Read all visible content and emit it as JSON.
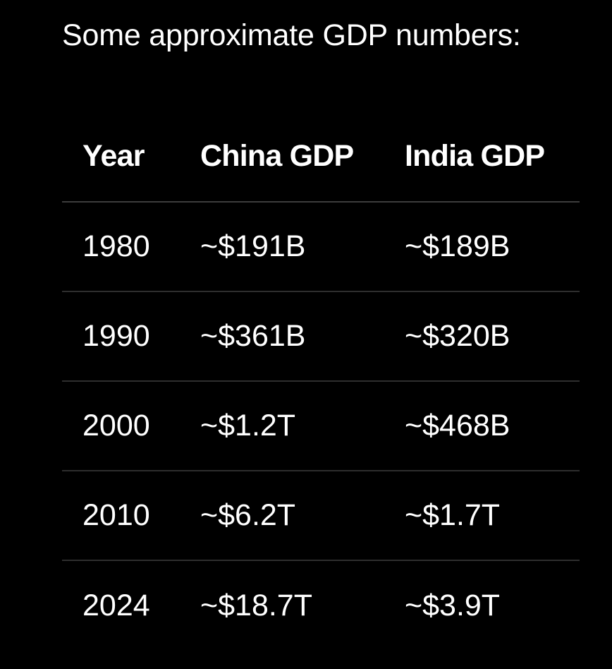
{
  "intro": "Some approximate GDP numbers:",
  "table": {
    "headers": [
      "Year",
      "China GDP",
      "India GDP"
    ],
    "rows": [
      [
        "1980",
        "~$191B",
        "~$189B"
      ],
      [
        "1990",
        "~$361B",
        "~$320B"
      ],
      [
        "2000",
        "~$1.2T",
        "~$468B"
      ],
      [
        "2010",
        "~$6.2T",
        "~$1.7T"
      ],
      [
        "2024",
        "~$18.7T",
        "~$3.9T"
      ]
    ]
  }
}
